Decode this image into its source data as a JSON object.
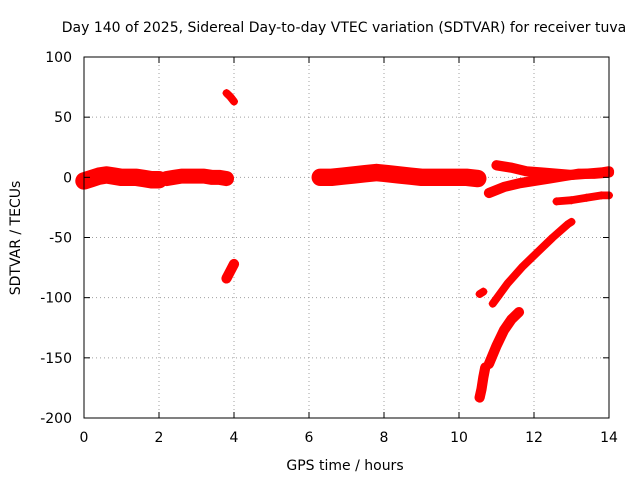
{
  "chart_data": {
    "type": "scatter",
    "title": "Day 140 of 2025, Sidereal Day-to-day VTEC variation (SDTVAR) for receiver tuva",
    "xlabel": "GPS time / hours",
    "ylabel": "SDTVAR / TECUs",
    "xlim": [
      0,
      14
    ],
    "ylim": [
      -200,
      100
    ],
    "xticks": [
      0,
      2,
      4,
      6,
      8,
      10,
      12,
      14
    ],
    "yticks": [
      -200,
      -150,
      -100,
      -50,
      0,
      50,
      100
    ],
    "grid": true,
    "marker": "plus",
    "color": "#ff0000",
    "series": [
      {
        "name": "seg-early-1",
        "x": [
          0.0,
          0.2,
          0.4,
          0.6,
          0.8,
          1.0,
          1.2,
          1.4,
          1.6,
          1.8,
          2.0
        ],
        "y": [
          -3,
          -1,
          1,
          2,
          1,
          0,
          0,
          0,
          -1,
          -2,
          -2
        ],
        "spread": 6
      },
      {
        "name": "seg-early-2",
        "x": [
          2.2,
          2.4,
          2.6,
          2.8,
          3.0,
          3.2,
          3.4,
          3.6,
          3.8
        ],
        "y": [
          -1,
          0,
          1,
          1,
          1,
          1,
          0,
          0,
          -1
        ],
        "spread": 5
      },
      {
        "name": "seg-spike-high",
        "x": [
          3.8,
          3.9,
          4.0
        ],
        "y": [
          70,
          67,
          63
        ],
        "spread": 2
      },
      {
        "name": "seg-spike-low",
        "x": [
          3.8,
          3.9,
          4.0
        ],
        "y": [
          -84,
          -78,
          -72
        ],
        "spread": 3
      },
      {
        "name": "seg-mid",
        "x": [
          6.3,
          6.6,
          6.9,
          7.2,
          7.5,
          7.8,
          8.1,
          8.4,
          8.7,
          9.0,
          9.3,
          9.6,
          9.9,
          10.2,
          10.5
        ],
        "y": [
          0,
          0,
          1,
          2,
          3,
          4,
          3,
          2,
          1,
          0,
          0,
          0,
          0,
          0,
          -1
        ],
        "spread": 6
      },
      {
        "name": "seg-late-upper",
        "x": [
          11.0,
          11.4,
          11.8,
          12.2,
          12.6,
          13.0,
          13.4,
          13.8,
          14.0
        ],
        "y": [
          10,
          8,
          5,
          4,
          3,
          2,
          3,
          4,
          5
        ],
        "spread": 3
      },
      {
        "name": "seg-late-neg5",
        "x": [
          10.8,
          11.2,
          11.6,
          12.0,
          12.4,
          12.8,
          13.2,
          13.6,
          14.0
        ],
        "y": [
          -13,
          -8,
          -5,
          -3,
          -1,
          1,
          3,
          3,
          4
        ],
        "spread": 3
      },
      {
        "name": "seg-late-neg20",
        "x": [
          12.6,
          13.0,
          13.4,
          13.8,
          14.0
        ],
        "y": [
          -20,
          -19,
          -17,
          -15,
          -15
        ],
        "spread": 2
      },
      {
        "name": "seg-diag-long",
        "x": [
          10.9,
          11.3,
          11.7,
          12.1,
          12.5,
          12.9,
          13.0
        ],
        "y": [
          -105,
          -88,
          -74,
          -62,
          -50,
          -39,
          -37
        ],
        "spread": 2
      },
      {
        "name": "seg-diag-steep",
        "x": [
          10.8,
          11.0,
          11.2,
          11.4,
          11.6
        ],
        "y": [
          -155,
          -140,
          -127,
          -118,
          -112
        ],
        "spread": 3
      },
      {
        "name": "seg-bottom",
        "x": [
          10.55,
          10.6,
          10.65,
          10.7
        ],
        "y": [
          -183,
          -176,
          -166,
          -158
        ],
        "spread": 3
      },
      {
        "name": "seg-pt-neg95",
        "x": [
          10.55,
          10.65
        ],
        "y": [
          -97,
          -95
        ],
        "spread": 2
      }
    ]
  }
}
